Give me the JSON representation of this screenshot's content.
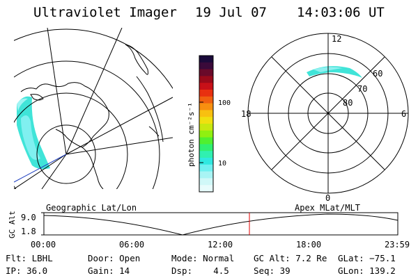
{
  "header": {
    "title": "Ultraviolet Imager",
    "date": "19 Jul 07",
    "time": "14:03:06 UT"
  },
  "colorbar": {
    "unit_label": "photon cm⁻²s⁻¹",
    "ticks": [
      "100",
      "10"
    ],
    "colors": [
      "#1a0a3a",
      "#3a0a3a",
      "#6a0a2a",
      "#9a0a1a",
      "#c81018",
      "#e83010",
      "#f06010",
      "#f89010",
      "#f8c010",
      "#f0e010",
      "#c8e810",
      "#90f010",
      "#50f030",
      "#30f070",
      "#30f0b0",
      "#30e8e0",
      "#70f0f0",
      "#a8f4f4",
      "#d0f8f8",
      "#e8fcfc"
    ]
  },
  "polar_plot": {
    "labels": {
      "top": "12",
      "bottom": "0",
      "left": "18",
      "right": "6"
    },
    "rings": [
      "60",
      "70",
      "80"
    ]
  },
  "timeline": {
    "left_label": "Geographic Lat/Lon",
    "right_label": "Apex MLat/MLT",
    "y_axis_title": "GC Alt",
    "y_ticks": [
      "9.0",
      "1.8"
    ],
    "x_ticks": [
      "00:00",
      "06:00",
      "12:00",
      "18:00",
      "23:59"
    ],
    "marker_color": "#e00000"
  },
  "status": {
    "flt": "Flt: LBHL",
    "ip": "IP: 36.0",
    "door": "Door: Open",
    "gain": "Gain: 14",
    "mode": "Mode: Normal",
    "dsp": "Dsp:    4.5",
    "gc_alt": "GC Alt: 7.2 Re",
    "seq": "Seq: 39",
    "glat": "GLat: −75.1",
    "glon": "GLon: 139.2"
  }
}
